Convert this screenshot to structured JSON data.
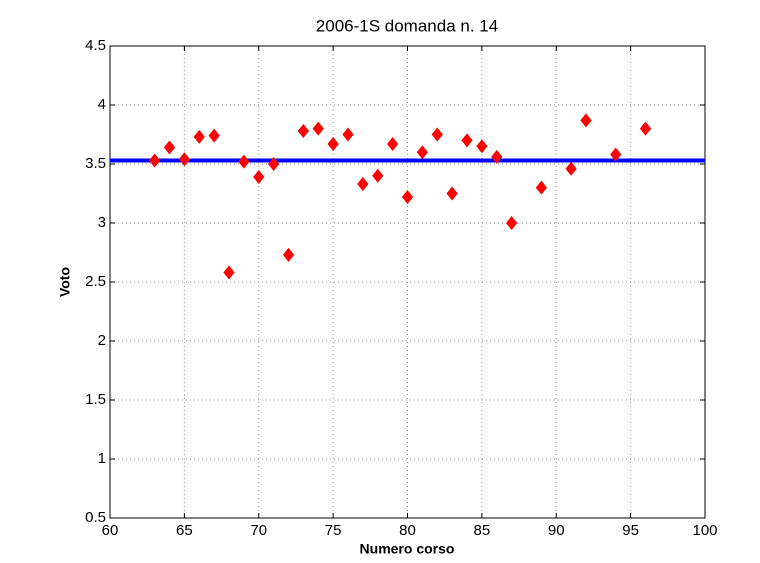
{
  "chart_data": {
    "type": "scatter",
    "title": "2006-1S domanda n.  14",
    "x_label": "Numero corso",
    "y_label": "Voto",
    "x": [
      63,
      64,
      65,
      66,
      67,
      68,
      69,
      70,
      71,
      72,
      73,
      74,
      75,
      76,
      77,
      78,
      79,
      80,
      81,
      82,
      83,
      84,
      85,
      86,
      87,
      89,
      91,
      92,
      94,
      96
    ],
    "values": [
      3.53,
      3.64,
      3.54,
      3.73,
      3.74,
      2.58,
      3.52,
      3.39,
      3.5,
      2.73,
      3.78,
      3.8,
      3.67,
      3.75,
      3.33,
      3.4,
      3.67,
      3.22,
      3.6,
      3.75,
      3.25,
      3.7,
      3.65,
      3.56,
      3.0,
      3.3,
      3.46,
      3.87,
      3.58,
      3.8
    ],
    "color": "#ff0000",
    "hline": {
      "value": 3.53,
      "color": "#0000ff"
    },
    "xlim": [
      60,
      100
    ],
    "xticks": [
      60,
      65,
      70,
      75,
      80,
      85,
      90,
      95,
      100
    ],
    "ylim": [
      0.5,
      4.5
    ],
    "yticks": [
      0.5,
      1,
      1.5,
      2,
      2.5,
      3,
      3.5,
      4,
      4.5
    ],
    "grid": true
  }
}
